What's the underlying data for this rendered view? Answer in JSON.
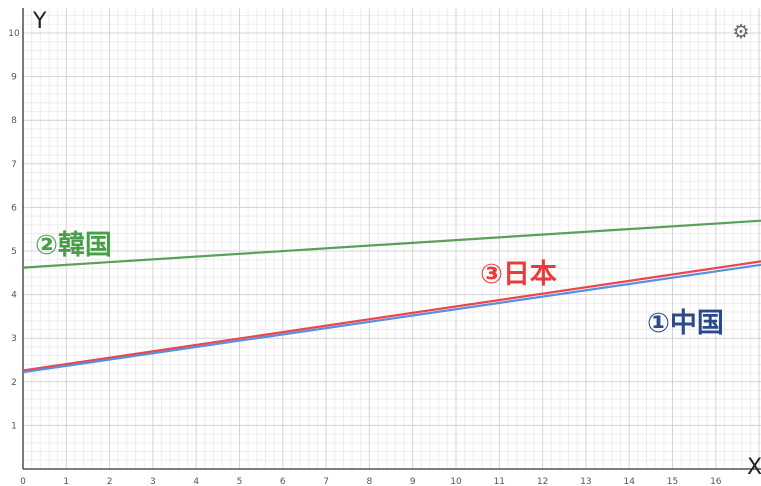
{
  "chart_data": {
    "type": "line",
    "x_axis_name": "X",
    "y_axis_name": "Y",
    "xlim": [
      0,
      17.3
    ],
    "ylim": [
      0,
      10.4
    ],
    "x_ticks": [
      "0",
      "1",
      "2",
      "3",
      "4",
      "5",
      "6",
      "7",
      "8",
      "9",
      "10",
      "11",
      "12",
      "13",
      "14",
      "15",
      "16"
    ],
    "y_ticks": [
      "1",
      "2",
      "3",
      "4",
      "5",
      "6",
      "7",
      "8",
      "9",
      "10"
    ],
    "grid": true,
    "series": [
      {
        "name": "②韓国",
        "color": "#5aa05a",
        "x": [
          0,
          17.3
        ],
        "y": [
          4.62,
          5.71
        ]
      },
      {
        "name": "③日本",
        "color": "#e8474b",
        "x": [
          0,
          17.3
        ],
        "y": [
          2.26,
          4.8
        ]
      },
      {
        "name": "①中国",
        "color": "#5b8de0",
        "x": [
          0,
          17.3
        ],
        "y": [
          2.22,
          4.72
        ]
      }
    ],
    "label_colors": {
      "korea": "#4a9e4a",
      "japan": "#ec3a3a",
      "china": "#2b4a8a"
    }
  },
  "settings_icon": "gear-icon"
}
